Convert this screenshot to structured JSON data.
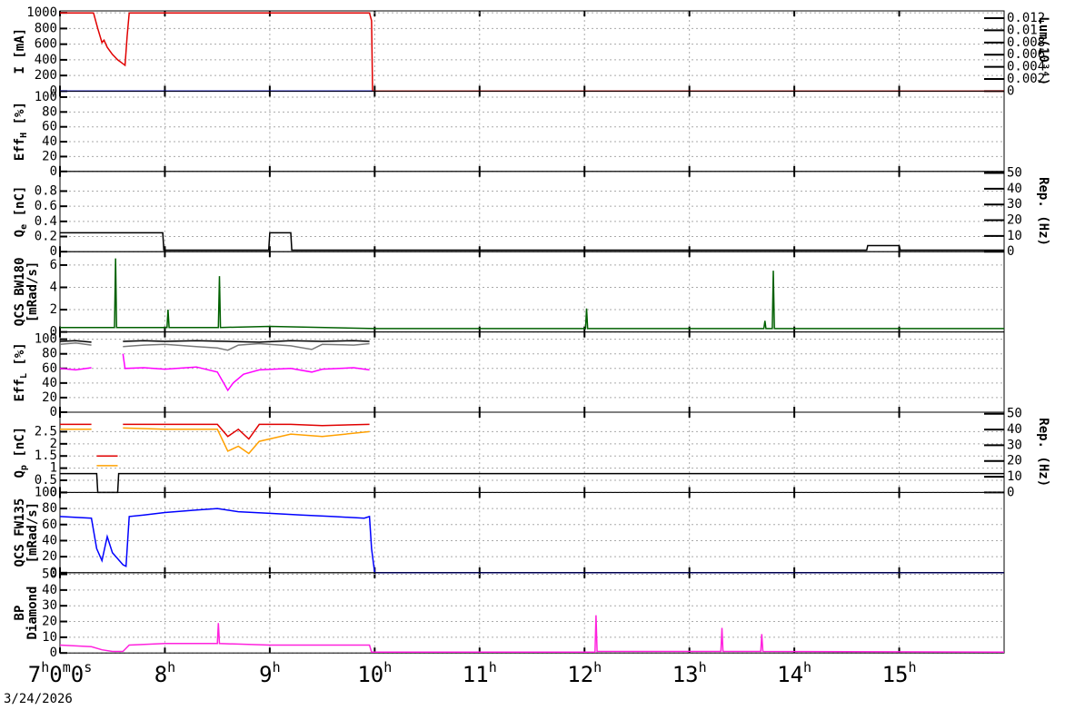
{
  "chart_data": [
    {
      "type": "line",
      "ylabel": [
        "I [mA]"
      ],
      "y2label": "Lum(10³⁴)",
      "xlim": [
        7,
        16
      ],
      "ylim": [
        0,
        1025
      ],
      "yticks": [
        0,
        200,
        400,
        600,
        800,
        1000
      ],
      "y2lim": [
        0,
        0.0132
      ],
      "y2ticks": [
        0,
        0.002,
        0.004,
        0.006,
        0.008,
        0.01,
        0.012
      ],
      "grid": true,
      "series": [
        {
          "color": "#e00000",
          "x": [
            7,
            7.32,
            7.36,
            7.4,
            7.42,
            7.45,
            7.5,
            7.55,
            7.6,
            7.62,
            7.64,
            7.66,
            8,
            9,
            9.95,
            9.97,
            9.98,
            10,
            12,
            16
          ],
          "values": [
            1000,
            1000,
            800,
            620,
            650,
            560,
            470,
            400,
            350,
            330,
            700,
            1000,
            1000,
            1000,
            1000,
            900,
            0,
            0,
            0,
            0
          ]
        },
        {
          "color": "#0000ff",
          "axis": "y2",
          "x": [
            7,
            9.98
          ],
          "values": [
            0,
            0
          ]
        }
      ]
    },
    {
      "type": "line",
      "ylabel": [
        {
          "text": "Eff",
          "sub": "H",
          "unit": " [%]"
        }
      ],
      "xlim": [
        7,
        16
      ],
      "ylim": [
        0,
        108
      ],
      "yticks": [
        0,
        20,
        40,
        60,
        80,
        100
      ],
      "grid": true,
      "series": []
    },
    {
      "type": "line",
      "ylabel": [
        {
          "text": "Q",
          "sub": "e",
          "unit": " [nC]"
        }
      ],
      "y2label": "Rep. (Hz)",
      "xlim": [
        7,
        16
      ],
      "ylim": [
        0,
        1.06
      ],
      "yticks": [
        0,
        0.2,
        0.4,
        0.6,
        0.8
      ],
      "y2lim": [
        0,
        51
      ],
      "y2ticks": [
        0,
        10,
        20,
        30,
        40,
        50
      ],
      "grid": true,
      "series": [
        {
          "color": "#000000",
          "x": [
            7,
            7.98,
            7.99,
            8.99,
            9.0,
            9.2,
            9.21,
            14.69,
            14.7,
            15.0,
            15.01,
            16
          ],
          "values": [
            0.25,
            0.25,
            0.02,
            0.02,
            0.25,
            0.25,
            0.02,
            0.02,
            0.08,
            0.08,
            0.02,
            0.02
          ]
        }
      ]
    },
    {
      "type": "line",
      "ylabel": [
        "QCS BW180",
        "[mRad/s]"
      ],
      "xlim": [
        7,
        16
      ],
      "ylim": [
        0,
        7.2
      ],
      "yticks": [
        0,
        2,
        4,
        6
      ],
      "grid": true,
      "series": [
        {
          "color": "#006000",
          "x": [
            7,
            7.3,
            7.52,
            7.53,
            7.54,
            8.02,
            8.03,
            8.04,
            8.51,
            8.52,
            8.53,
            9,
            10,
            11,
            12.01,
            12.02,
            12.03,
            13,
            13.71,
            13.72,
            13.73,
            13.79,
            13.8,
            13.81,
            14,
            15,
            16
          ],
          "values": [
            0.4,
            0.4,
            0.4,
            6.6,
            0.4,
            0.4,
            2.0,
            0.4,
            0.4,
            5.0,
            0.4,
            0.5,
            0.3,
            0.3,
            0.3,
            2.1,
            0.3,
            0.3,
            0.3,
            1.0,
            0.3,
            0.3,
            5.5,
            0.3,
            0.3,
            0.3,
            0.3
          ]
        }
      ]
    },
    {
      "type": "line",
      "ylabel": [
        {
          "text": "Eff",
          "sub": "L",
          "unit": " [%]"
        }
      ],
      "xlim": [
        7,
        16
      ],
      "ylim": [
        0,
        110
      ],
      "yticks": [
        0,
        20,
        40,
        60,
        80,
        100
      ],
      "grid": true,
      "series": [
        {
          "color": "#000000",
          "x": [
            7,
            7.15,
            7.3,
            7.33,
            7.6,
            7.8,
            8,
            8.3,
            8.6,
            8.9,
            9.2,
            9.5,
            9.8,
            9.95
          ],
          "values": [
            97,
            98,
            96,
            null,
            97,
            98,
            97,
            98,
            97,
            96,
            98,
            97,
            98,
            97
          ]
        },
        {
          "color": "#777777",
          "x": [
            7,
            7.15,
            7.3,
            7.33,
            7.6,
            7.8,
            8,
            8.3,
            8.5,
            8.6,
            8.7,
            8.9,
            9.2,
            9.4,
            9.5,
            9.8,
            9.95
          ],
          "values": [
            93,
            95,
            92,
            null,
            90,
            92,
            93,
            90,
            88,
            85,
            92,
            94,
            91,
            86,
            93,
            92,
            94
          ]
        },
        {
          "color": "#ff00ff",
          "x": [
            7,
            7.15,
            7.3,
            7.33,
            7.6,
            7.62,
            7.8,
            8,
            8.3,
            8.5,
            8.6,
            8.65,
            8.75,
            8.9,
            9.2,
            9.4,
            9.5,
            9.8,
            9.95
          ],
          "values": [
            60,
            58,
            61,
            null,
            80,
            60,
            61,
            59,
            62,
            55,
            30,
            40,
            52,
            58,
            60,
            55,
            59,
            61,
            58
          ]
        }
      ]
    },
    {
      "type": "line",
      "ylabel": [
        {
          "text": "Q",
          "sub": "p",
          "unit": " [nC]"
        }
      ],
      "y2label": "Rep. (Hz)",
      "xlim": [
        7,
        16
      ],
      "ylim": [
        0,
        3.3
      ],
      "yticks": [
        0,
        0.5,
        1,
        1.5,
        2,
        2.5
      ],
      "y2lim": [
        0,
        51
      ],
      "y2ticks": [
        0,
        10,
        20,
        30,
        40,
        50
      ],
      "grid": true,
      "series": [
        {
          "color": "#e00000",
          "x": [
            7,
            7.3,
            7.33,
            7.35,
            7.55,
            7.57,
            7.6,
            8,
            8.5,
            8.6,
            8.7,
            8.8,
            8.9,
            9.2,
            9.5,
            9.95
          ],
          "values": [
            2.8,
            2.8,
            null,
            1.5,
            1.5,
            null,
            2.8,
            2.8,
            2.8,
            2.3,
            2.6,
            2.2,
            2.8,
            2.8,
            2.75,
            2.8
          ]
        },
        {
          "color": "#ffa000",
          "x": [
            7,
            7.3,
            7.33,
            7.35,
            7.55,
            7.57,
            7.6,
            8,
            8.5,
            8.6,
            8.7,
            8.8,
            8.9,
            9.2,
            9.5,
            9.95
          ],
          "values": [
            2.6,
            2.6,
            null,
            1.1,
            1.1,
            null,
            2.65,
            2.6,
            2.6,
            1.7,
            1.9,
            1.6,
            2.1,
            2.4,
            2.3,
            2.5
          ]
        },
        {
          "color": "#000000",
          "axis": "y2",
          "x": [
            7,
            7.35,
            7.36,
            7.55,
            7.56,
            16
          ],
          "values": [
            12,
            12,
            0,
            0,
            12,
            12
          ]
        }
      ]
    },
    {
      "type": "line",
      "ylabel": [
        "QCS FW135",
        "[mRad/s]"
      ],
      "xlim": [
        7,
        16
      ],
      "ylim": [
        0,
        100
      ],
      "yticks": [
        0,
        20,
        40,
        60,
        80,
        100
      ],
      "grid": true,
      "series": [
        {
          "color": "#0000ff",
          "x": [
            7,
            7.3,
            7.35,
            7.4,
            7.45,
            7.5,
            7.6,
            7.63,
            7.66,
            7.8,
            8,
            8.3,
            8.5,
            8.7,
            9,
            9.3,
            9.6,
            9.9,
            9.95,
            9.97,
            10,
            16
          ],
          "values": [
            70,
            68,
            30,
            15,
            45,
            25,
            10,
            8,
            70,
            72,
            75,
            78,
            80,
            76,
            74,
            72,
            70,
            68,
            70,
            30,
            0,
            0
          ]
        }
      ]
    },
    {
      "type": "line",
      "ylabel": [
        "BP",
        "Diamond"
      ],
      "xlim": [
        7,
        16
      ],
      "ylim": [
        0,
        51
      ],
      "yticks": [
        0,
        10,
        20,
        30,
        40,
        50
      ],
      "grid": true,
      "xticks": [
        {
          "value": 7,
          "label": "7h0m0s"
        },
        {
          "value": 8,
          "label": "8h"
        },
        {
          "value": 9,
          "label": "9h"
        },
        {
          "value": 10,
          "label": "10h"
        },
        {
          "value": 11,
          "label": "11h"
        },
        {
          "value": 12,
          "label": "12h"
        },
        {
          "value": 13,
          "label": "13h"
        },
        {
          "value": 14,
          "label": "14h"
        },
        {
          "value": 15,
          "label": "15h"
        }
      ],
      "xlabel": "3/24/2026",
      "series": [
        {
          "color": "#ff22dd",
          "x": [
            7,
            7.3,
            7.4,
            7.5,
            7.6,
            7.66,
            8,
            8.5,
            8.51,
            8.52,
            9,
            9.5,
            9.95,
            9.97,
            10,
            12.1,
            12.11,
            12.12,
            13,
            13.3,
            13.31,
            13.32,
            13.68,
            13.69,
            13.7,
            16
          ],
          "values": [
            5,
            4,
            2,
            1,
            1,
            5,
            6,
            6,
            19,
            6,
            5,
            5,
            5,
            0.5,
            0.5,
            0.5,
            24,
            1,
            1,
            1,
            16,
            1,
            1,
            12,
            1,
            0.5
          ]
        }
      ]
    }
  ]
}
